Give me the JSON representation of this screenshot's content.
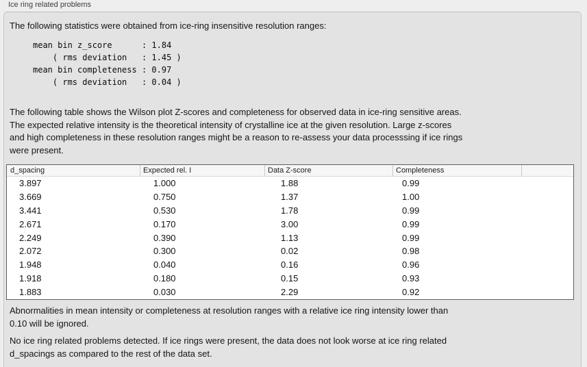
{
  "panel": {
    "title": "Ice ring related problems"
  },
  "content": {
    "intro": "The following statistics were obtained from ice-ring insensitive resolution ranges:",
    "stats_block": "mean bin z_score      : 1.84\n    ( rms deviation   : 1.45 )\nmean bin completeness : 0.97\n    ( rms deviation   : 0.04 )",
    "stats": {
      "mean_bin_z_score": "1.84",
      "z_score_rms_deviation": "1.45",
      "mean_bin_completeness": "0.97",
      "completeness_rms_deviation": "0.04"
    },
    "table_description": "The following table shows the Wilson plot Z-scores and completeness for observed data in ice-ring sensitive areas.\nThe expected relative intensity is the theoretical intensity of crystalline ice at the given resolution. Large z-scores\nand high completeness in these resolution ranges might be a reason to re-assess your data processsing if ice rings\nwere present.",
    "ignore_note": "Abnormalities in mean intensity or completeness at resolution ranges with a relative ice ring intensity lower than\n0.10 will be ignored.",
    "conclusion": "No ice ring related problems detected. If ice rings were present, the data does not look worse at ice ring related\nd_spacings as compared to the rest of the data set."
  },
  "table": {
    "columns": [
      "d_spacing",
      "Expected rel. I",
      "Data Z-score",
      "Completeness"
    ],
    "rows": [
      [
        "3.897",
        "1.000",
        "1.88",
        "0.99"
      ],
      [
        "3.669",
        "0.750",
        "1.37",
        "1.00"
      ],
      [
        "3.441",
        "0.530",
        "1.78",
        "0.99"
      ],
      [
        "2.671",
        "0.170",
        "3.00",
        "0.99"
      ],
      [
        "2.249",
        "0.390",
        "1.13",
        "0.99"
      ],
      [
        "2.072",
        "0.300",
        "0.02",
        "0.98"
      ],
      [
        "1.948",
        "0.040",
        "0.16",
        "0.96"
      ],
      [
        "1.918",
        "0.180",
        "0.15",
        "0.93"
      ],
      [
        "1.883",
        "0.030",
        "2.29",
        "0.92"
      ]
    ]
  },
  "colors": {
    "page_background": "#eeeeee",
    "panel_background": "#e3e3e3",
    "panel_border": "#c6c6c6",
    "table_background": "#ffffff",
    "table_border": "#5f5f5f",
    "table_header_background": "#f6f6f6",
    "text": "#111111"
  }
}
